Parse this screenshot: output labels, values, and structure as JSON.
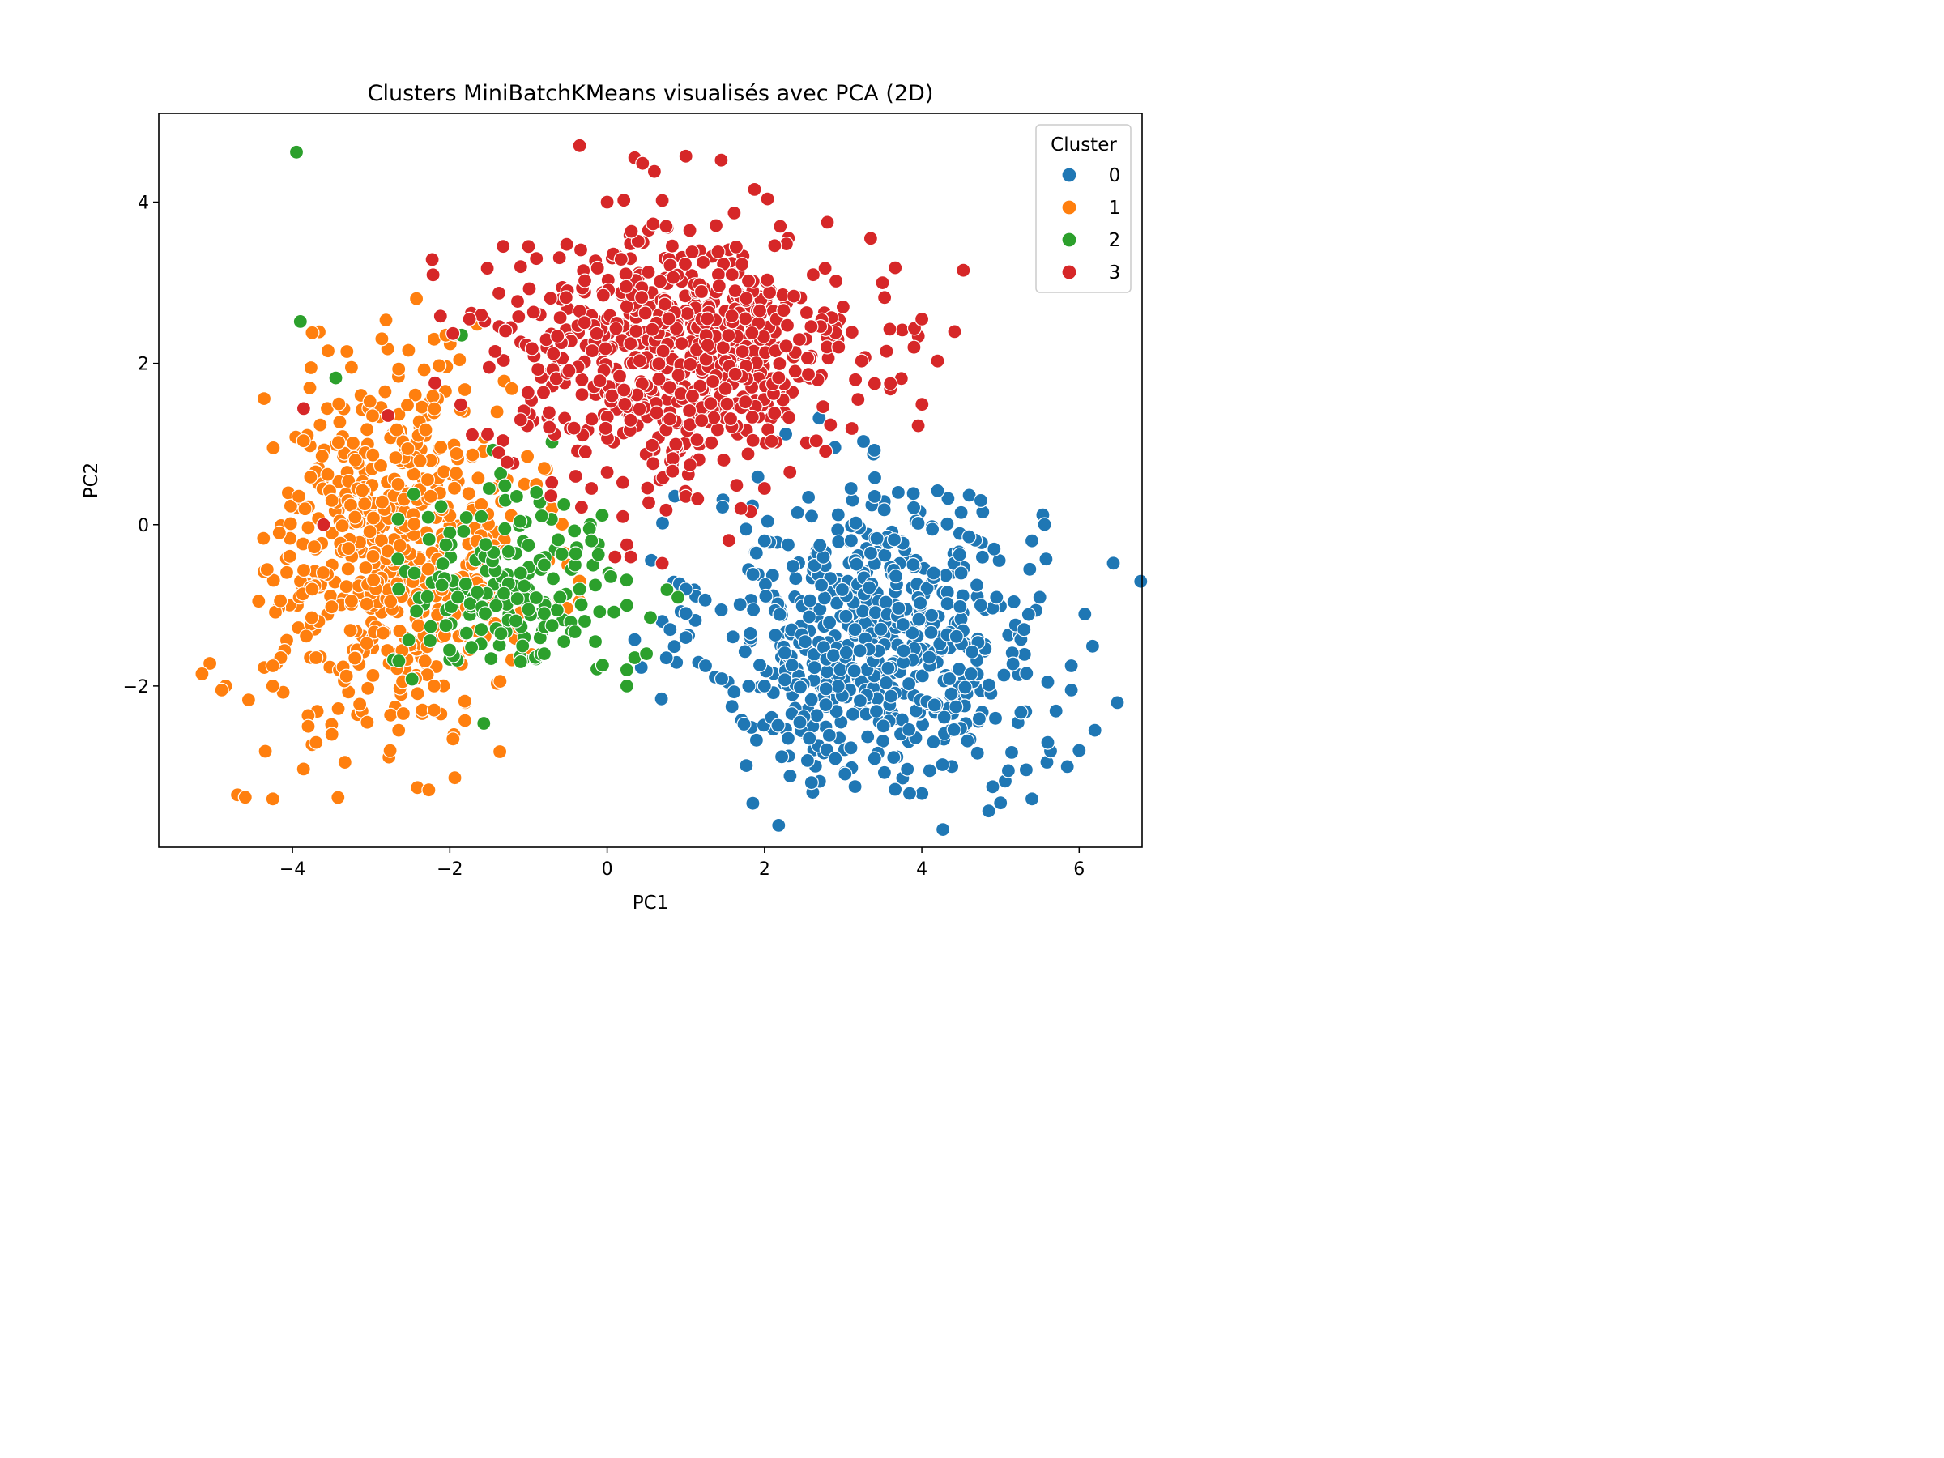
{
  "chart_data": {
    "type": "scatter",
    "title": "Clusters MiniBatchKMeans visualisés avec PCA (2D)",
    "xlabel": "PC1",
    "ylabel": "PC2",
    "xlim": [
      -5.7,
      6.8
    ],
    "ylim": [
      -4.0,
      5.1
    ],
    "xticks": [
      -4,
      -2,
      0,
      2,
      4,
      6
    ],
    "xtick_labels": [
      "−4",
      "−2",
      "0",
      "2",
      "4",
      "6"
    ],
    "yticks": [
      -2,
      0,
      2,
      4
    ],
    "ytick_labels": [
      "−2",
      "0",
      "2",
      "4"
    ],
    "grid": false,
    "legend": {
      "title": "Cluster",
      "placement": "top-right"
    },
    "series": [
      {
        "name": "0",
        "color": "#1f77b4",
        "centroid": [
          3.4,
          -1.4
        ],
        "spread": [
          1.05,
          0.9
        ],
        "count": 620,
        "points": [
          [
            3.1,
            0.45
          ],
          [
            3.4,
            0.35
          ],
          [
            3.7,
            0.4
          ],
          [
            4.2,
            0.42
          ],
          [
            4.75,
            0.3
          ],
          [
            4.5,
            0.15
          ],
          [
            5.4,
            -0.2
          ],
          [
            4.6,
            -0.15
          ],
          [
            2.0,
            -0.2
          ],
          [
            2.3,
            -0.25
          ],
          [
            1.0,
            -0.8
          ],
          [
            1.0,
            -1.1
          ],
          [
            0.7,
            -1.2
          ],
          [
            0.8,
            -1.3
          ],
          [
            1.0,
            -1.4
          ],
          [
            1.25,
            -1.75
          ],
          [
            2.9,
            -2.9
          ],
          [
            3.4,
            -2.9
          ],
          [
            4.1,
            -3.05
          ],
          [
            4.9,
            -3.25
          ],
          [
            4.85,
            -3.55
          ],
          [
            5.0,
            -3.45
          ],
          [
            5.4,
            -3.4
          ],
          [
            5.1,
            -3.05
          ],
          [
            5.6,
            -2.7
          ],
          [
            5.85,
            -3.0
          ],
          [
            6.0,
            -2.8
          ],
          [
            6.2,
            -2.55
          ],
          [
            5.9,
            -2.05
          ],
          [
            5.9,
            -1.75
          ],
          [
            5.6,
            -1.95
          ],
          [
            5.3,
            -1.3
          ],
          [
            5.5,
            -0.9
          ],
          [
            4.95,
            -0.9
          ],
          [
            4.7,
            -0.75
          ],
          [
            4.75,
            -1.0
          ],
          [
            4.5,
            -0.6
          ],
          [
            4.15,
            -0.6
          ],
          [
            2.3,
            -2.65
          ],
          [
            2.45,
            -2.45
          ],
          [
            1.8,
            -2.0
          ],
          [
            2.0,
            -2.0
          ]
        ]
      },
      {
        "name": "1",
        "color": "#ff7f0e",
        "centroid": [
          -2.7,
          -0.3
        ],
        "spread": [
          0.75,
          1.1
        ],
        "count": 580,
        "points": [
          [
            -2.2,
            2.3
          ],
          [
            -2.05,
            2.35
          ],
          [
            -3.75,
            2.38
          ],
          [
            -3.25,
            1.95
          ],
          [
            -2.65,
            1.93
          ],
          [
            -3.2,
            0.8
          ],
          [
            -3.5,
            0.3
          ],
          [
            -1.4,
            1.4
          ],
          [
            -1.45,
            0.45
          ],
          [
            -1.6,
            0.25
          ],
          [
            -0.8,
            0.7
          ],
          [
            -0.9,
            0.5
          ],
          [
            -0.7,
            0.2
          ],
          [
            -0.55,
            -0.35
          ],
          [
            -0.5,
            -0.5
          ],
          [
            -0.35,
            -0.7
          ],
          [
            -0.35,
            -0.95
          ],
          [
            -1.35,
            -0.9
          ],
          [
            -1.75,
            -1.55
          ],
          [
            -1.7,
            -0.4
          ],
          [
            -2.2,
            -2.0
          ],
          [
            -2.35,
            -2.3
          ],
          [
            -2.2,
            -2.3
          ],
          [
            -2.65,
            -2.55
          ],
          [
            -3.05,
            -2.45
          ],
          [
            -3.5,
            -2.6
          ],
          [
            -3.7,
            -2.7
          ],
          [
            -3.8,
            -2.5
          ],
          [
            -3.7,
            -1.65
          ],
          [
            -3.75,
            -0.8
          ],
          [
            -4.15,
            -1.65
          ],
          [
            -4.25,
            -1.75
          ],
          [
            -4.25,
            -2.0
          ],
          [
            -4.85,
            -2.0
          ],
          [
            -4.9,
            -2.05
          ],
          [
            -5.05,
            -1.72
          ],
          [
            -5.15,
            -1.85
          ],
          [
            -4.7,
            -3.35
          ],
          [
            -4.6,
            -3.38
          ],
          [
            -4.25,
            -3.4
          ]
        ]
      },
      {
        "name": "2",
        "color": "#2ca02c",
        "centroid": [
          -1.2,
          -0.8
        ],
        "spread": [
          0.75,
          0.55
        ],
        "count": 160,
        "points": [
          [
            -3.95,
            4.62
          ],
          [
            -3.9,
            2.52
          ],
          [
            -3.45,
            1.82
          ],
          [
            -1.85,
            2.35
          ],
          [
            -1.5,
            0.45
          ],
          [
            -1.15,
            0.35
          ],
          [
            -0.9,
            0.4
          ],
          [
            -0.55,
            0.25
          ],
          [
            -1.6,
            0.1
          ],
          [
            -2.0,
            -0.1
          ],
          [
            -2.05,
            -0.25
          ],
          [
            -1.3,
            -0.05
          ],
          [
            -0.2,
            -0.2
          ],
          [
            -0.8,
            -0.5
          ],
          [
            -1.1,
            -0.6
          ],
          [
            -0.35,
            -0.8
          ],
          [
            -0.15,
            -0.75
          ],
          [
            -0.6,
            -0.9
          ],
          [
            -0.8,
            -1.1
          ],
          [
            -1.0,
            -1.05
          ],
          [
            -0.7,
            -1.25
          ],
          [
            -0.55,
            -1.45
          ],
          [
            -0.15,
            -1.45
          ],
          [
            -0.8,
            -1.6
          ],
          [
            -1.1,
            -1.7
          ],
          [
            -1.35,
            -1.35
          ],
          [
            -1.55,
            -1.1
          ],
          [
            -1.6,
            -1.3
          ],
          [
            -1.9,
            -0.9
          ],
          [
            -2.1,
            -0.75
          ],
          [
            -2.05,
            -1.25
          ],
          [
            -2.45,
            -0.6
          ],
          [
            -2.65,
            -0.8
          ],
          [
            0.25,
            -1.0
          ],
          [
            0.55,
            -1.15
          ],
          [
            0.9,
            -0.9
          ],
          [
            0.35,
            -1.65
          ],
          [
            0.5,
            -1.6
          ],
          [
            0.25,
            -1.8
          ],
          [
            0.25,
            -2.0
          ]
        ]
      },
      {
        "name": "3",
        "color": "#d62728",
        "centroid": [
          0.9,
          2.1
        ],
        "spread": [
          1.15,
          0.75
        ],
        "count": 680,
        "points": [
          [
            -0.35,
            4.7
          ],
          [
            0.35,
            4.55
          ],
          [
            0.45,
            4.48
          ],
          [
            0.6,
            4.38
          ],
          [
            1.0,
            4.57
          ],
          [
            1.45,
            4.52
          ],
          [
            0.7,
            4.02
          ],
          [
            0.0,
            4.0
          ],
          [
            0.75,
            3.7
          ],
          [
            2.8,
            3.75
          ],
          [
            3.35,
            3.55
          ],
          [
            2.2,
            3.7
          ],
          [
            3.5,
            3.0
          ],
          [
            3.0,
            2.7
          ],
          [
            4.0,
            2.55
          ],
          [
            4.2,
            2.03
          ],
          [
            3.9,
            2.2
          ],
          [
            3.55,
            2.15
          ],
          [
            3.6,
            1.75
          ],
          [
            3.4,
            1.75
          ],
          [
            -1.0,
            3.45
          ],
          [
            -0.9,
            3.3
          ],
          [
            -1.1,
            3.2
          ],
          [
            -1.6,
            2.6
          ],
          [
            -1.75,
            2.55
          ],
          [
            -1.5,
            1.95
          ],
          [
            -1.1,
            1.3
          ],
          [
            -0.4,
            0.6
          ],
          [
            -0.2,
            0.45
          ],
          [
            0.0,
            0.65
          ],
          [
            0.2,
            0.1
          ],
          [
            0.75,
            0.18
          ],
          [
            1.0,
            0.35
          ],
          [
            1.15,
            0.32
          ],
          [
            1.7,
            0.2
          ],
          [
            2.0,
            0.45
          ],
          [
            0.25,
            -0.25
          ],
          [
            0.1,
            -0.4
          ],
          [
            0.3,
            -0.4
          ],
          [
            0.7,
            -0.48
          ]
        ]
      }
    ]
  }
}
